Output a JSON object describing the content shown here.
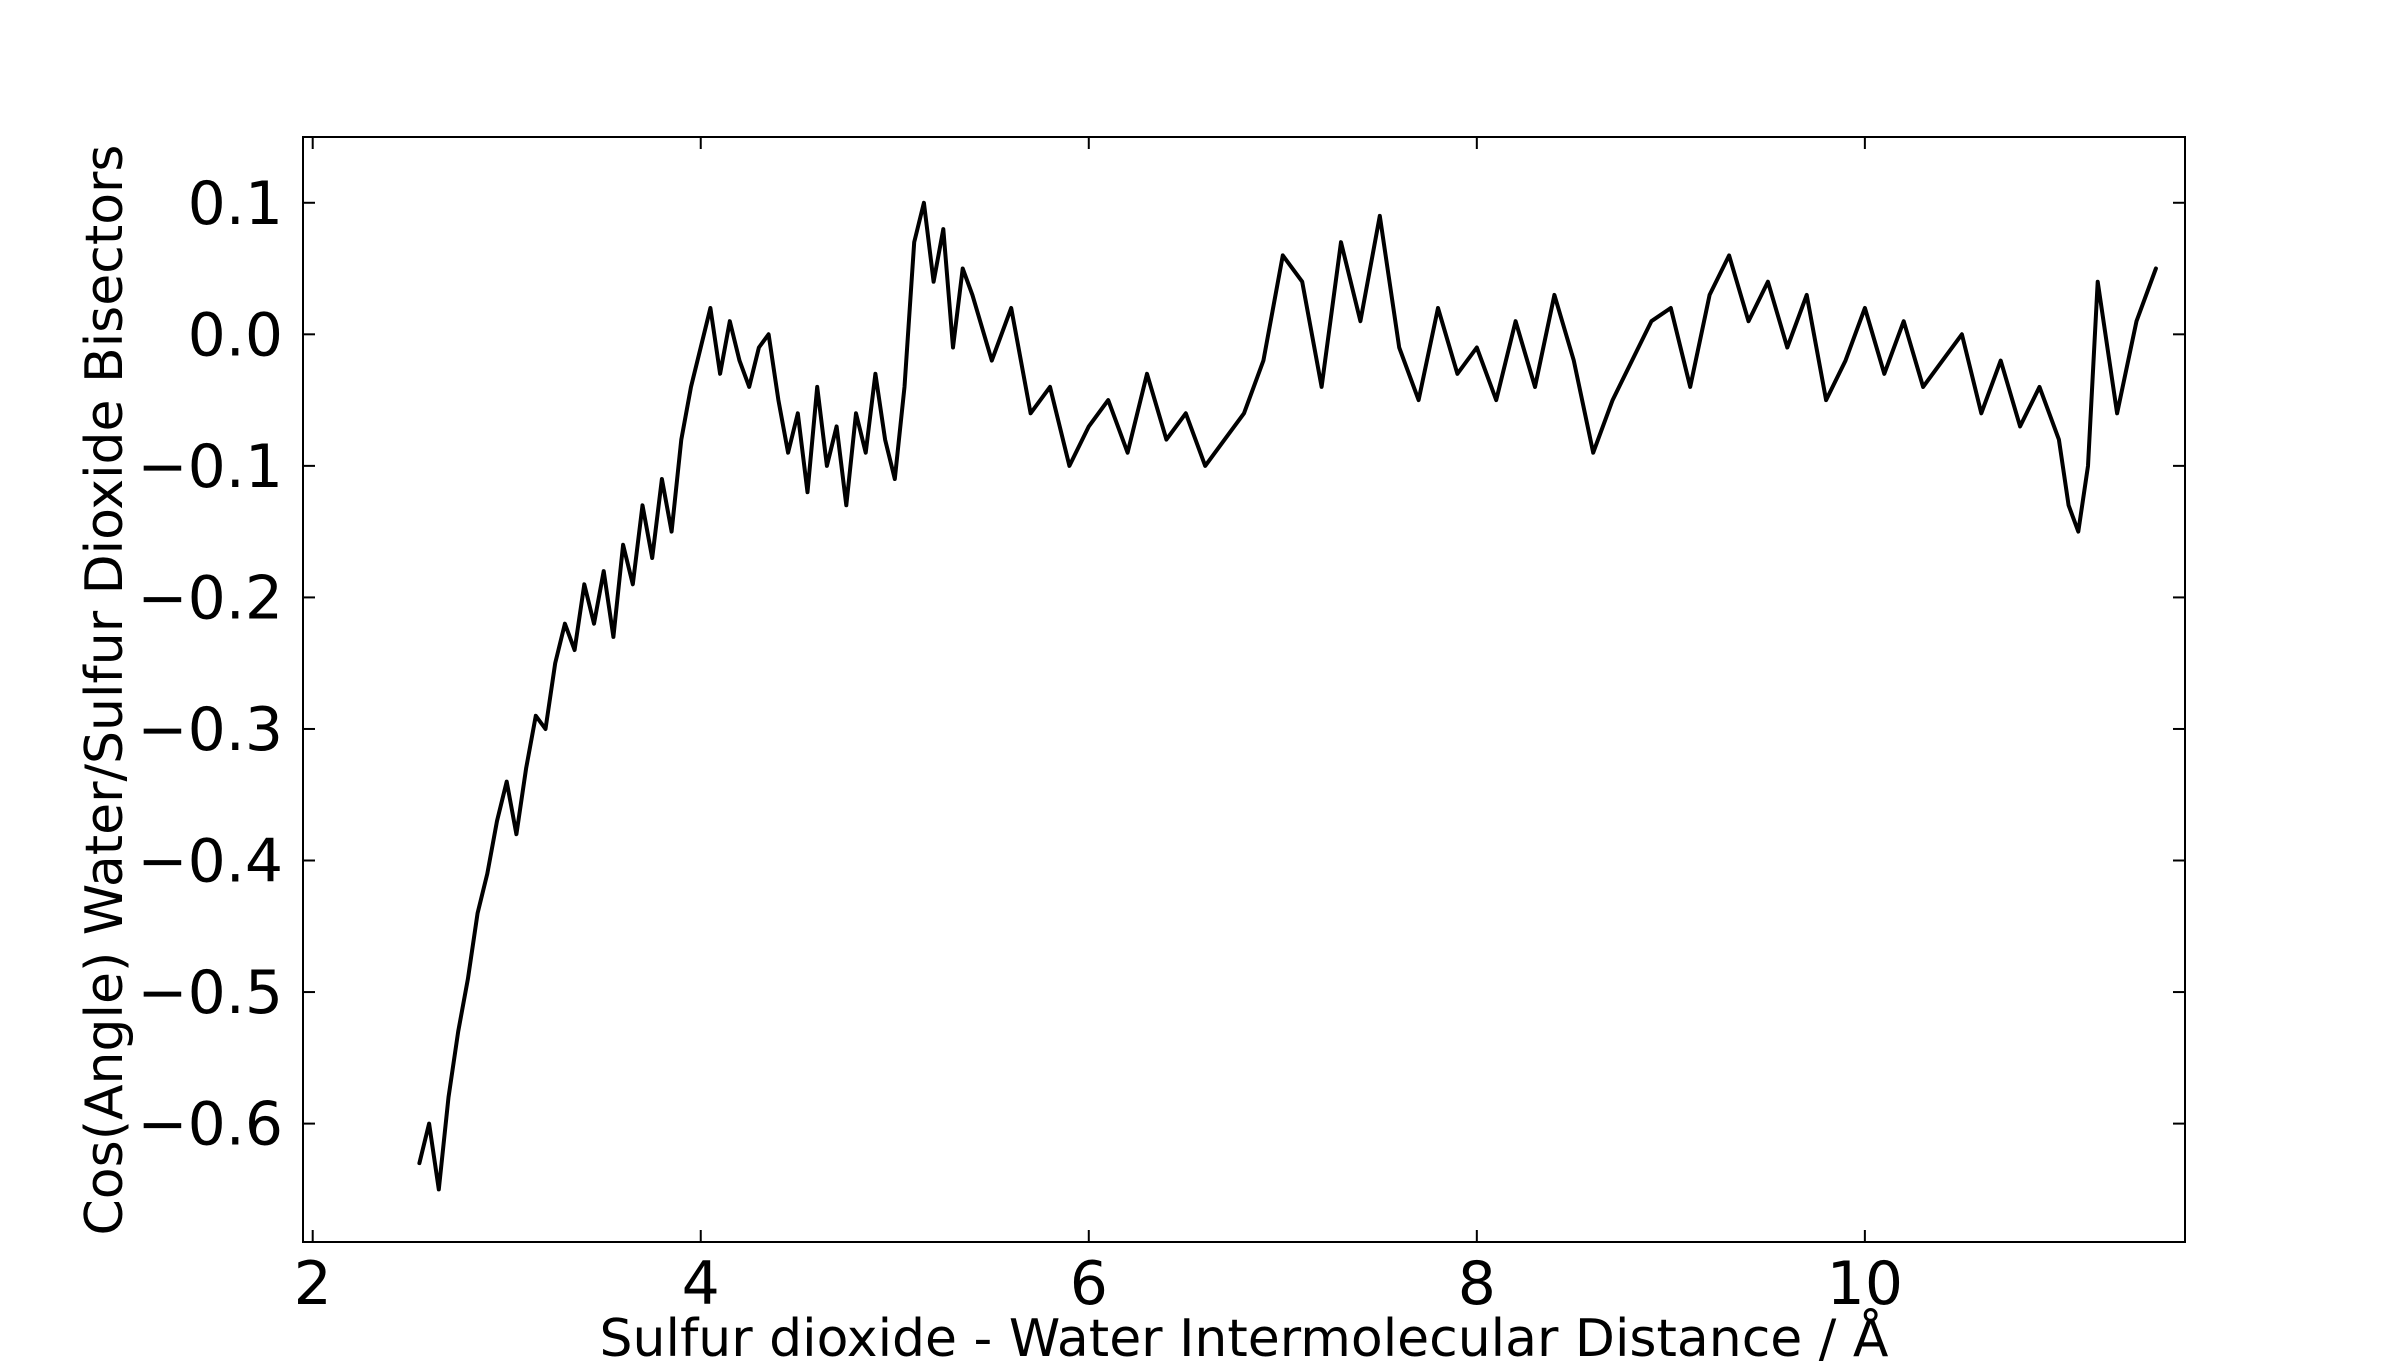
{
  "chart_data": {
    "type": "line",
    "title": "",
    "xlabel": "Sulfur dioxide - Water Intermolecular Distance / Å",
    "ylabel": "Cos(Angle) Water/Sulfur Dioxide Bisectors",
    "xlim": [
      1.95,
      11.65
    ],
    "ylim": [
      -0.69,
      0.15
    ],
    "xticks": [
      2,
      4,
      6,
      8,
      10
    ],
    "xtick_labels": [
      "2",
      "4",
      "6",
      "8",
      "10"
    ],
    "yticks": [
      -0.6,
      -0.5,
      -0.4,
      -0.3,
      -0.2,
      -0.1,
      0.0,
      0.1
    ],
    "ytick_labels": [
      "−0.6",
      "−0.5",
      "−0.4",
      "−0.3",
      "−0.2",
      "−0.1",
      "0.0",
      "0.1"
    ],
    "grid": false,
    "legend": "none",
    "line_color": "#000000",
    "series": [
      {
        "name": "",
        "x": [
          2.55,
          2.6,
          2.65,
          2.7,
          2.75,
          2.8,
          2.85,
          2.9,
          2.95,
          3.0,
          3.05,
          3.1,
          3.15,
          3.2,
          3.25,
          3.3,
          3.35,
          3.4,
          3.45,
          3.5,
          3.55,
          3.6,
          3.65,
          3.7,
          3.75,
          3.8,
          3.85,
          3.9,
          3.95,
          4.0,
          4.05,
          4.1,
          4.15,
          4.2,
          4.25,
          4.3,
          4.35,
          4.4,
          4.45,
          4.5,
          4.55,
          4.6,
          4.65,
          4.7,
          4.75,
          4.8,
          4.85,
          4.9,
          4.95,
          5.0,
          5.05,
          5.1,
          5.15,
          5.2,
          5.25,
          5.3,
          5.35,
          5.4,
          5.5,
          5.6,
          5.7,
          5.8,
          5.9,
          6.0,
          6.1,
          6.2,
          6.3,
          6.4,
          6.5,
          6.6,
          6.7,
          6.8,
          6.9,
          7.0,
          7.1,
          7.2,
          7.3,
          7.4,
          7.5,
          7.6,
          7.7,
          7.8,
          7.9,
          8.0,
          8.1,
          8.2,
          8.3,
          8.4,
          8.5,
          8.6,
          8.7,
          8.8,
          8.9,
          9.0,
          9.1,
          9.2,
          9.3,
          9.4,
          9.5,
          9.6,
          9.7,
          9.8,
          9.9,
          10.0,
          10.1,
          10.2,
          10.3,
          10.4,
          10.5,
          10.6,
          10.7,
          10.8,
          10.9,
          11.0,
          11.05,
          11.1,
          11.15,
          11.2,
          11.3,
          11.4,
          11.5
        ],
        "y": [
          -0.63,
          -0.6,
          -0.65,
          -0.58,
          -0.53,
          -0.49,
          -0.44,
          -0.41,
          -0.37,
          -0.34,
          -0.38,
          -0.33,
          -0.29,
          -0.3,
          -0.25,
          -0.22,
          -0.24,
          -0.19,
          -0.22,
          -0.18,
          -0.23,
          -0.16,
          -0.19,
          -0.13,
          -0.17,
          -0.11,
          -0.15,
          -0.08,
          -0.04,
          -0.01,
          0.02,
          -0.03,
          0.01,
          -0.02,
          -0.04,
          -0.01,
          0.0,
          -0.05,
          -0.09,
          -0.06,
          -0.12,
          -0.04,
          -0.1,
          -0.07,
          -0.13,
          -0.06,
          -0.09,
          -0.03,
          -0.08,
          -0.11,
          -0.04,
          0.07,
          0.1,
          0.04,
          0.08,
          -0.01,
          0.05,
          0.03,
          -0.02,
          0.02,
          -0.06,
          -0.04,
          -0.1,
          -0.07,
          -0.05,
          -0.09,
          -0.03,
          -0.08,
          -0.06,
          -0.1,
          -0.08,
          -0.06,
          -0.02,
          0.06,
          0.04,
          -0.04,
          0.07,
          0.01,
          0.09,
          -0.01,
          -0.05,
          0.02,
          -0.03,
          -0.01,
          -0.05,
          0.01,
          -0.04,
          0.03,
          -0.02,
          -0.09,
          -0.05,
          -0.02,
          0.01,
          0.02,
          -0.04,
          0.03,
          0.06,
          0.01,
          0.04,
          -0.01,
          0.03,
          -0.05,
          -0.02,
          0.02,
          -0.03,
          0.01,
          -0.04,
          -0.02,
          0.0,
          -0.06,
          -0.02,
          -0.07,
          -0.04,
          -0.08,
          -0.13,
          -0.15,
          -0.1,
          0.04,
          -0.06,
          0.01,
          0.05
        ]
      }
    ]
  }
}
